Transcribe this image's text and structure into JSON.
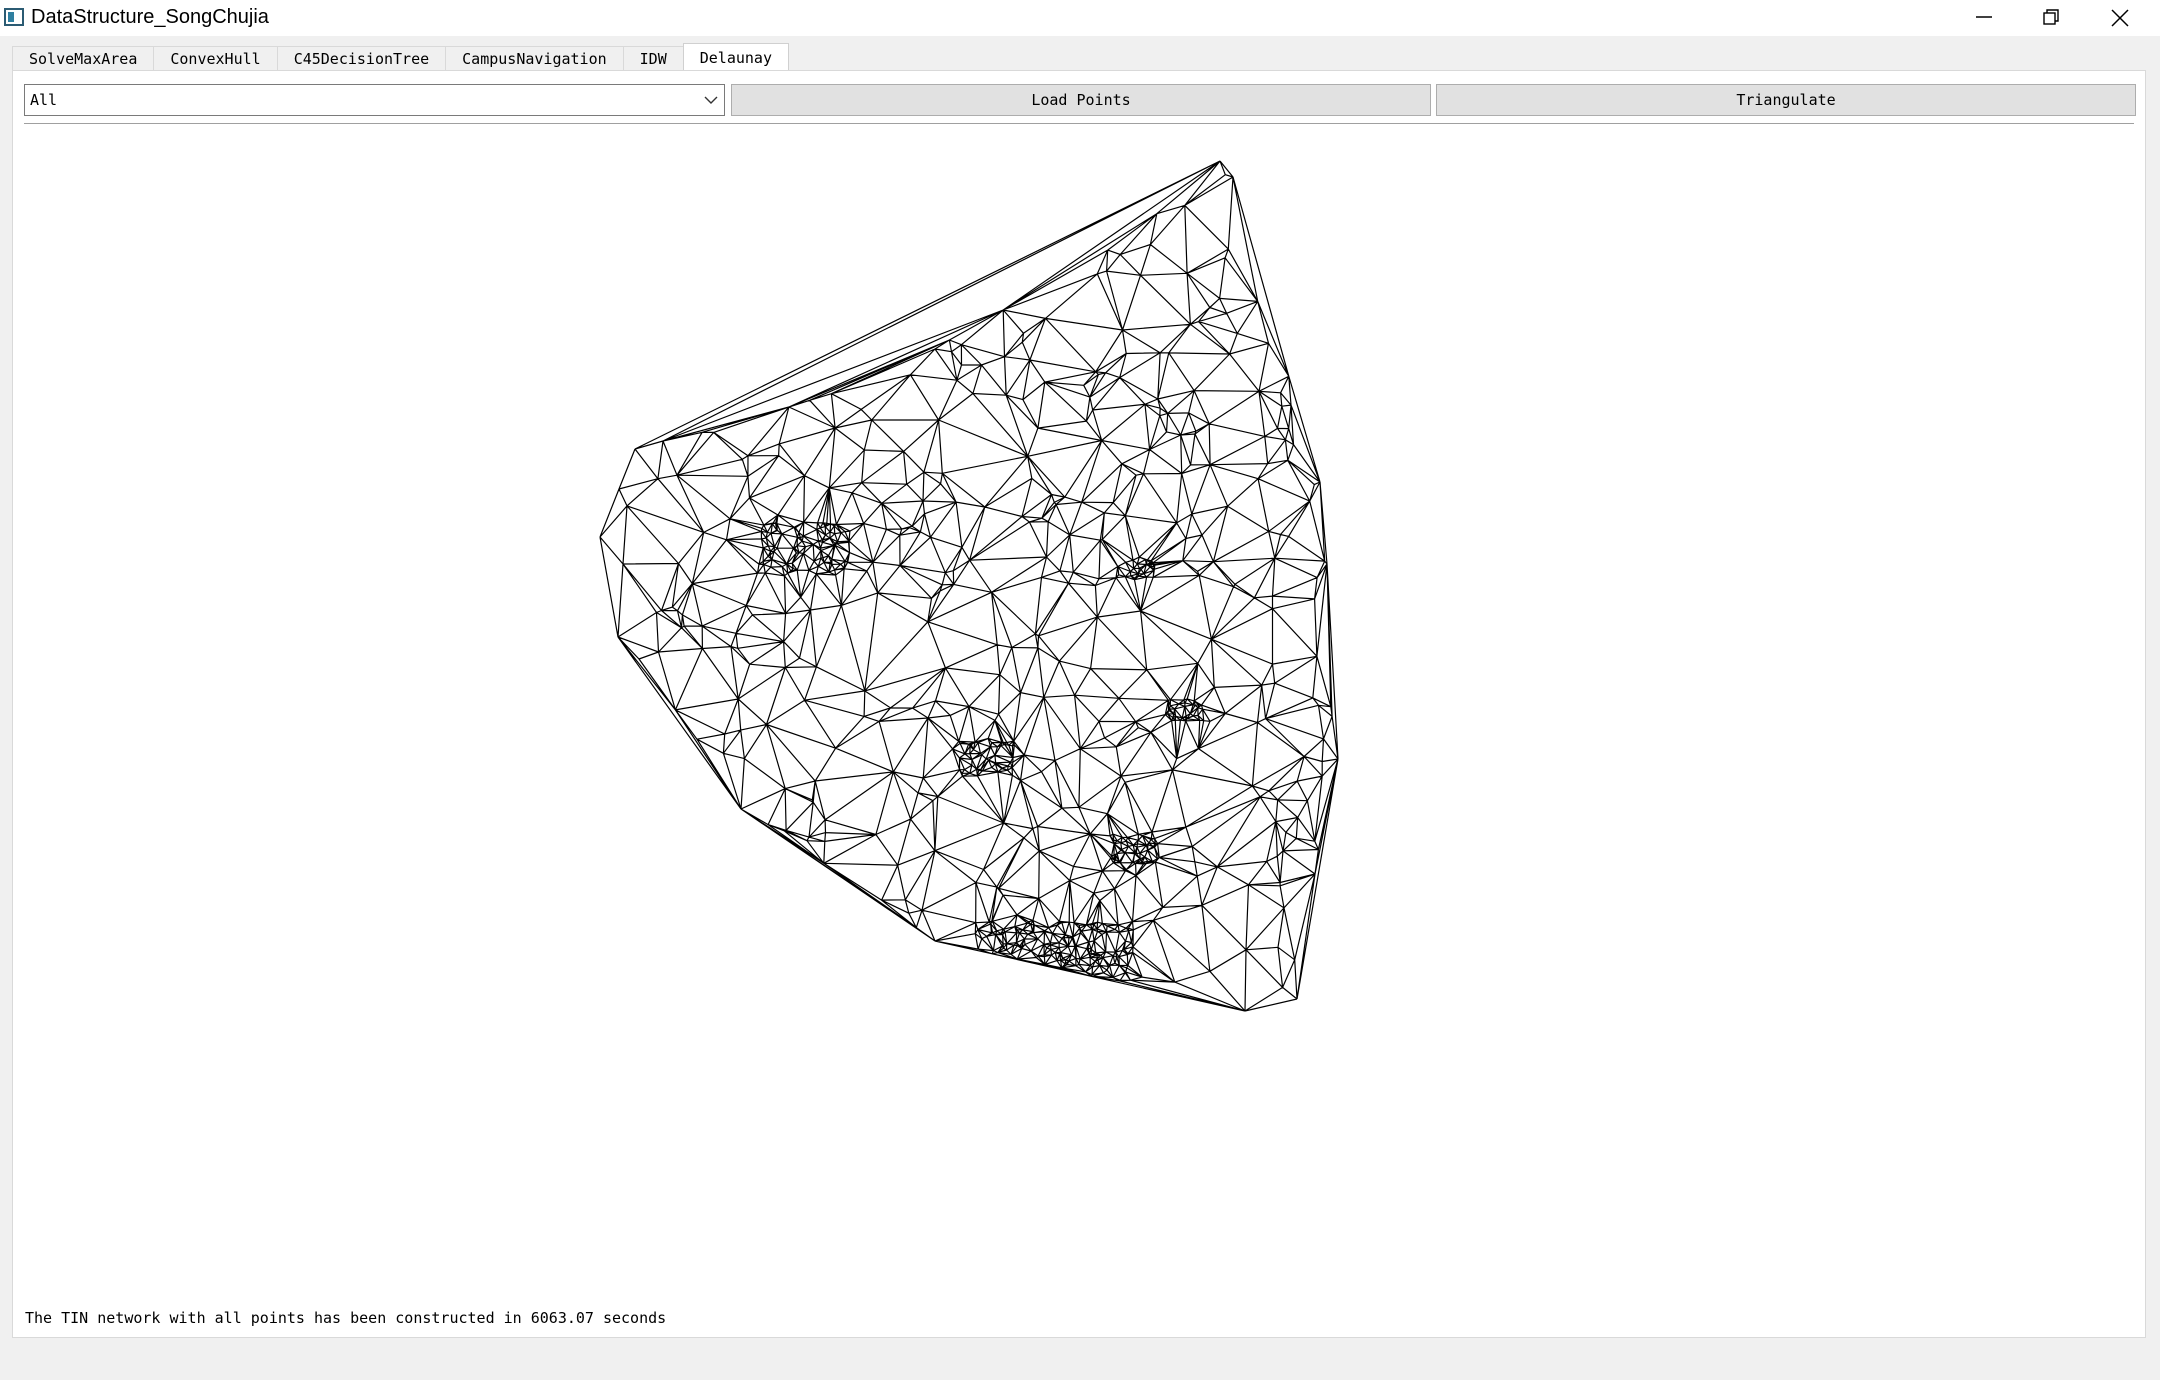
{
  "window": {
    "title": "DataStructure_SongChujia",
    "icons": {
      "app": "app-icon",
      "minimize": "minimize-icon",
      "maximize": "restore-icon",
      "close": "close-icon"
    }
  },
  "tabs": [
    {
      "label": "SolveMaxArea",
      "active": false
    },
    {
      "label": "ConvexHull",
      "active": false
    },
    {
      "label": "C45DecisionTree",
      "active": false
    },
    {
      "label": "CampusNavigation",
      "active": false
    },
    {
      "label": "IDW",
      "active": false
    },
    {
      "label": "Delaunay",
      "active": true
    }
  ],
  "toolbar": {
    "dataset_select": {
      "value": "All",
      "icon": "chevron-down-icon"
    },
    "load_label": "Load Points",
    "triangulate_label": "Triangulate"
  },
  "status": {
    "text": "The TIN network with all points has been constructed in 6063.07 seconds"
  },
  "colors": {
    "mesh_stroke": "#000000",
    "canvas_bg": "#ffffff",
    "window_bg": "#f0f0f0"
  }
}
